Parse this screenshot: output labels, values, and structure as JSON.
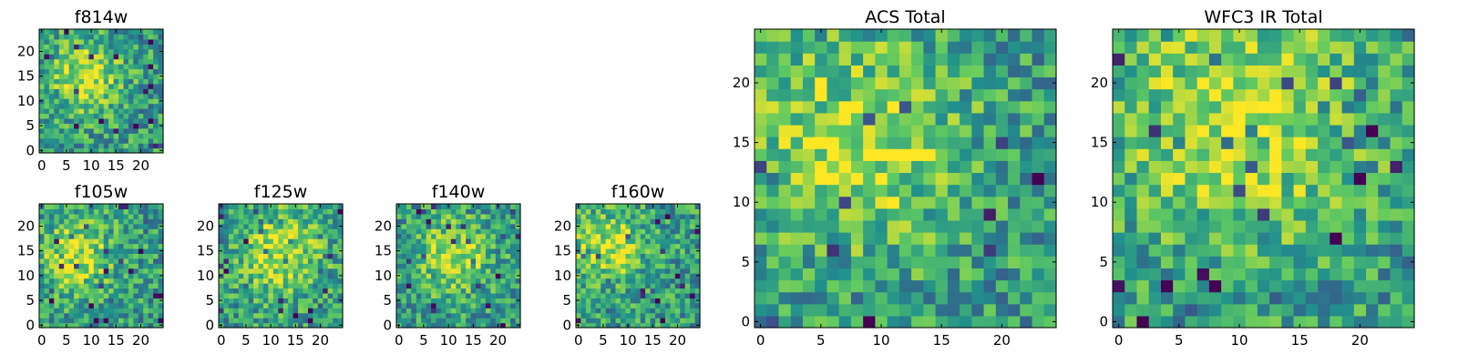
{
  "chart_data": [
    {
      "type": "heatmap",
      "title": "f814w",
      "grid_size": 25,
      "xlim": [
        0,
        25
      ],
      "ylim": [
        0,
        25
      ],
      "xticks": [
        0,
        5,
        10,
        15,
        20
      ],
      "yticks": [
        0,
        5,
        10,
        15,
        20
      ],
      "colormap": "viridis-like (dark purple = low, yellow = high)",
      "description": "noisy pixel image with brighter central blob near (9, 15)"
    },
    {
      "type": "heatmap",
      "title": "f105w",
      "grid_size": 25,
      "xlim": [
        0,
        25
      ],
      "ylim": [
        0,
        25
      ],
      "xticks": [
        0,
        5,
        10,
        15,
        20
      ],
      "yticks": [
        0,
        5,
        10,
        15,
        20
      ],
      "colormap": "viridis-like (dark purple = low, yellow = high)",
      "description": "bright elongated feature near (7, 14)"
    },
    {
      "type": "heatmap",
      "title": "f125w",
      "grid_size": 25,
      "xlim": [
        0,
        25
      ],
      "ylim": [
        0,
        25
      ],
      "xticks": [
        0,
        5,
        10,
        15,
        20
      ],
      "yticks": [
        0,
        5,
        10,
        15,
        20
      ],
      "colormap": "viridis-like (dark purple = low, yellow = high)",
      "description": "diffuse bright region near (12, 15)"
    },
    {
      "type": "heatmap",
      "title": "f140w",
      "grid_size": 25,
      "xlim": [
        0,
        25
      ],
      "ylim": [
        0,
        25
      ],
      "xticks": [
        0,
        5,
        10,
        15,
        20
      ],
      "yticks": [
        0,
        5,
        10,
        15,
        20
      ],
      "colormap": "viridis-like (dark purple = low, yellow = high)",
      "description": "bright blob near (11, 14)"
    },
    {
      "type": "heatmap",
      "title": "f160w",
      "grid_size": 25,
      "xlim": [
        0,
        25
      ],
      "ylim": [
        0,
        25
      ],
      "xticks": [
        0,
        5,
        10,
        15,
        20
      ],
      "yticks": [
        0,
        5,
        10,
        15,
        20
      ],
      "colormap": "viridis-like (dark purple = low, yellow = high)",
      "description": "bright blob near (6, 16)"
    },
    {
      "type": "heatmap",
      "title": "ACS Total",
      "grid_size": 25,
      "xlim": [
        0,
        25
      ],
      "ylim": [
        0,
        25
      ],
      "xticks": [
        0,
        5,
        10,
        15,
        20
      ],
      "yticks": [
        0,
        5,
        10,
        15,
        20
      ],
      "colormap": "viridis-like (dark purple = low, yellow = high)",
      "description": "bright region near (8, 15) with scattered dark pixels"
    },
    {
      "type": "heatmap",
      "title": "WFC3 IR Total",
      "grid_size": 25,
      "xlim": [
        0,
        25
      ],
      "ylim": [
        0,
        25
      ],
      "xticks": [
        0,
        5,
        10,
        15,
        20
      ],
      "yticks": [
        0,
        5,
        10,
        15,
        20
      ],
      "colormap": "viridis-like (dark purple = low, yellow = high)",
      "description": "broad bright region near (10, 17)"
    }
  ]
}
